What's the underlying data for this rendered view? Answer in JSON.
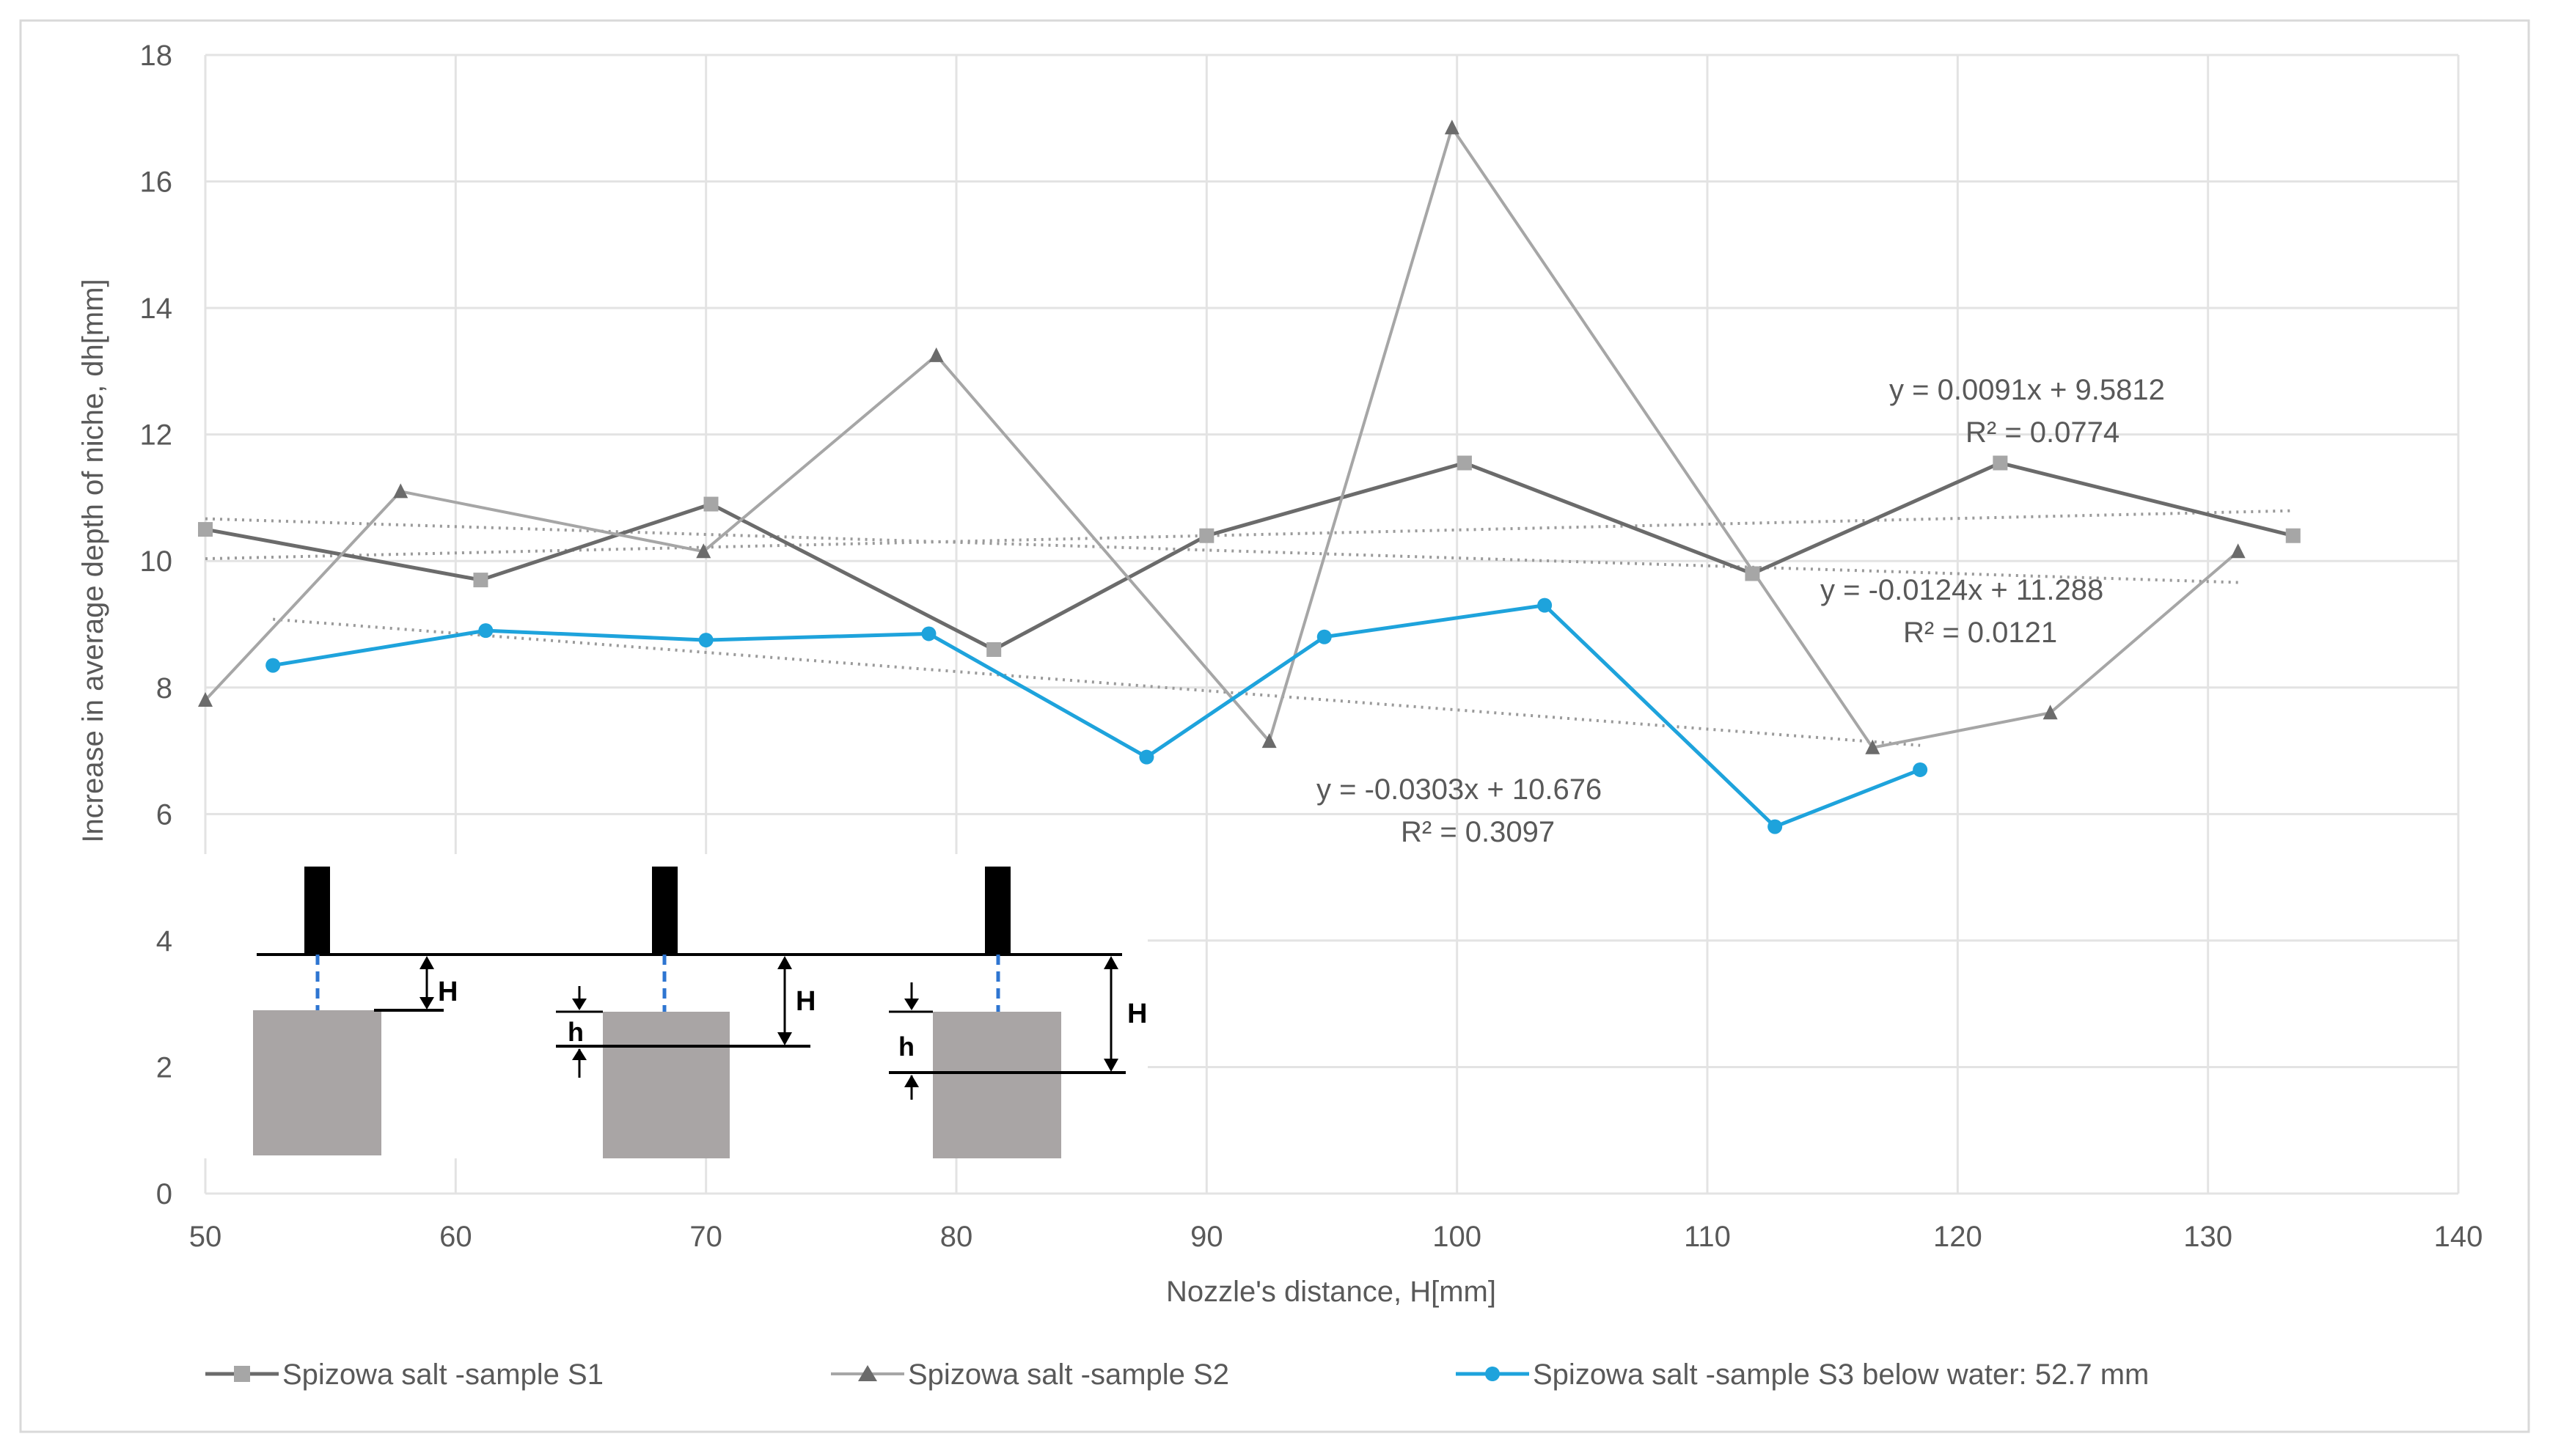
{
  "chart_data": {
    "type": "line",
    "title": "",
    "xlabel": "Nozzle's distance, H[mm]",
    "ylabel": "Increase in average depth of niche, dh[mm]",
    "xlim": [
      50,
      140
    ],
    "ylim": [
      0,
      18
    ],
    "x_ticks": [
      50,
      60,
      70,
      80,
      90,
      100,
      110,
      120,
      130,
      140
    ],
    "y_ticks": [
      0,
      2,
      4,
      6,
      8,
      10,
      12,
      14,
      16,
      18
    ],
    "grid": true,
    "legend_position": "bottom",
    "series": [
      {
        "name": "Spizowa salt -sample  S1",
        "color": "#6b6b6b",
        "marker": "square",
        "x": [
          50,
          61,
          70.2,
          81.5,
          90,
          100.3,
          111.8,
          121.7,
          133.4
        ],
        "y": [
          10.5,
          9.7,
          10.9,
          8.6,
          10.4,
          11.55,
          9.8,
          11.55,
          10.4
        ],
        "trend": {
          "slope": 0.0091,
          "intercept": 9.5812,
          "x_range": [
            50,
            133.4
          ],
          "equation": "y = 0.0091x + 9.5812",
          "r2": "R² = 0.0774"
        }
      },
      {
        "name": "Spizowa salt -sample  S2",
        "color": "#a6a6a6",
        "marker": "triangle",
        "x": [
          50,
          57.8,
          69.9,
          79.2,
          92.5,
          99.8,
          116.6,
          123.7,
          131.2
        ],
        "y": [
          7.8,
          11.1,
          10.15,
          13.25,
          7.15,
          16.85,
          7.05,
          7.6,
          10.15
        ],
        "trend": {
          "slope": -0.0124,
          "intercept": 11.288,
          "x_range": [
            50,
            131.2
          ],
          "equation": "y = -0.0124x + 11.288",
          "r2": "R² = 0.0121"
        }
      },
      {
        "name": "Spizowa salt -sample  S3  below water: 52.7 mm",
        "color": "#1ea3dc",
        "marker": "circle",
        "x": [
          52.7,
          61.2,
          70,
          78.9,
          87.6,
          94.7,
          103.5,
          112.7,
          118.5
        ],
        "y": [
          8.35,
          8.9,
          8.75,
          8.85,
          6.9,
          8.8,
          9.3,
          5.8,
          6.7
        ],
        "trend": {
          "slope": -0.0303,
          "intercept": 10.676,
          "x_range": [
            52.7,
            118.5
          ],
          "equation": "y = -0.0303x + 10.676",
          "r2": "R² = 0.3097"
        }
      }
    ],
    "inset_diagram": {
      "description_labels": [
        "H",
        "H",
        "h",
        "H",
        "h"
      ]
    }
  }
}
